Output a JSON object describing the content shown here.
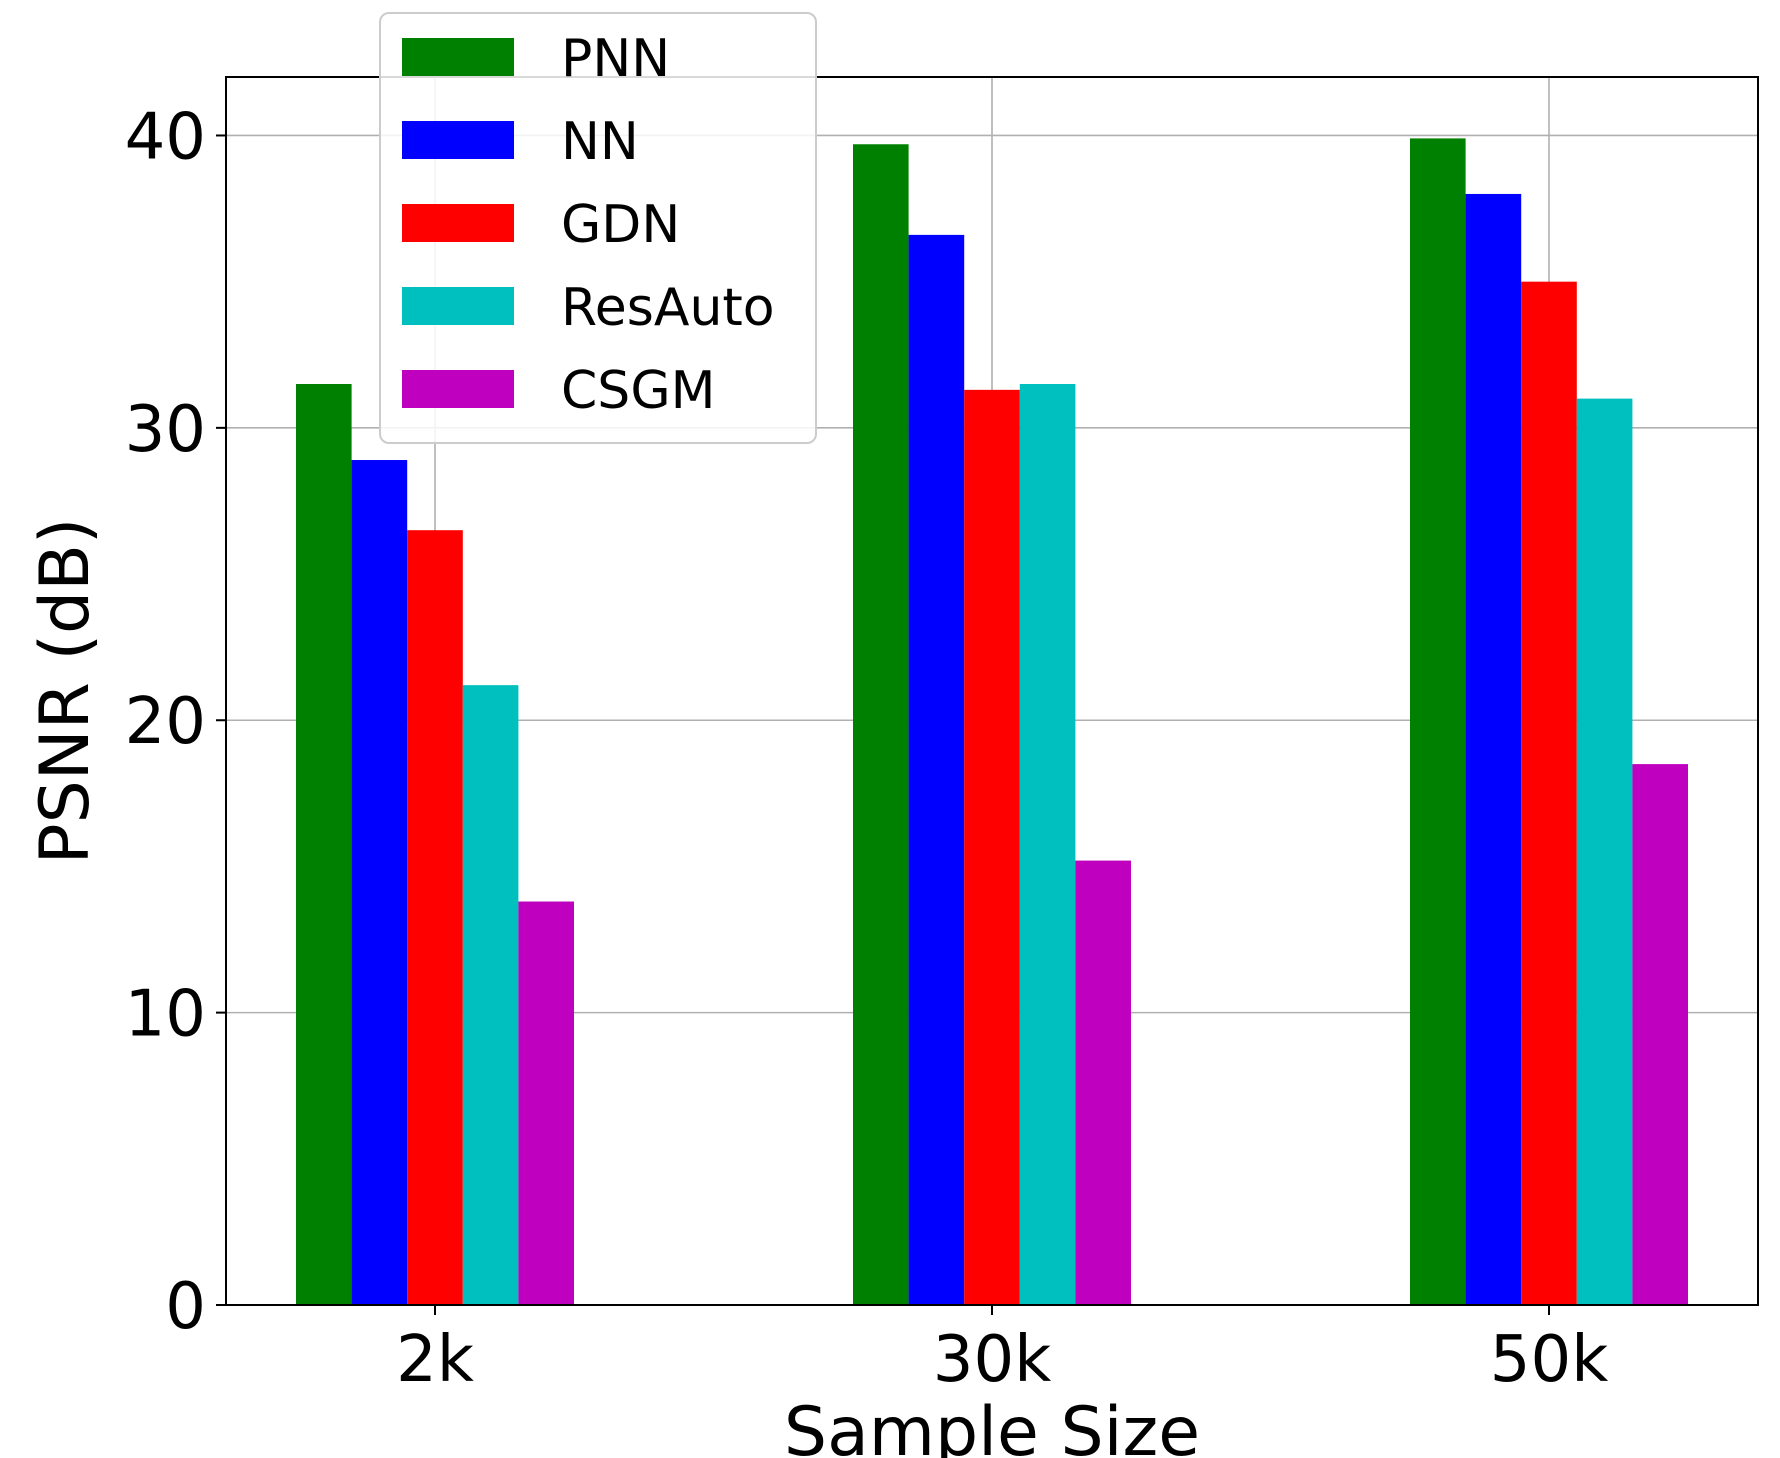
{
  "chart_data": {
    "type": "bar",
    "title": "",
    "xlabel": "Sample Size",
    "ylabel": "PSNR (dB)",
    "categories": [
      "2k",
      "30k",
      "50k"
    ],
    "ylim": [
      0,
      42
    ],
    "yticks": [
      0,
      10,
      20,
      30,
      40
    ],
    "grid": true,
    "legend_position": "top-left",
    "series": [
      {
        "name": "PNN",
        "color": "#008000",
        "values": [
          31.5,
          39.7,
          39.9
        ]
      },
      {
        "name": "NN",
        "color": "#0000ff",
        "values": [
          28.9,
          36.6,
          38.0
        ]
      },
      {
        "name": "GDN",
        "color": "#ff0000",
        "values": [
          26.5,
          31.3,
          35.0
        ]
      },
      {
        "name": "ResAuto",
        "color": "#00bfbf",
        "values": [
          21.2,
          31.5,
          31.0
        ]
      },
      {
        "name": "CSGM",
        "color": "#bf00bf",
        "values": [
          13.8,
          15.2,
          18.5
        ]
      }
    ]
  }
}
